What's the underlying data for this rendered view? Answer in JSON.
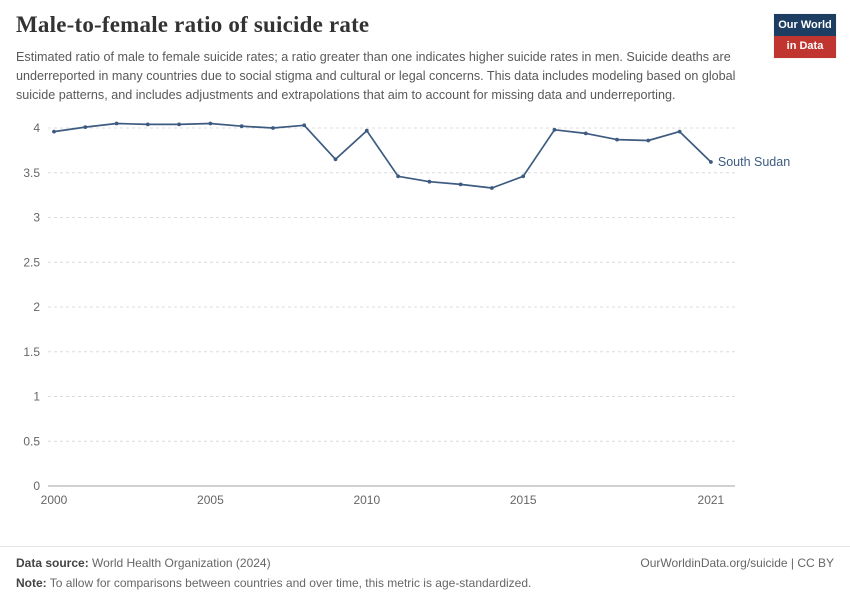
{
  "header": {
    "title": "Male-to-female ratio of suicide rate",
    "subtitle": "Estimated ratio of male to female suicide rates; a ratio greater than one indicates higher suicide rates in men. Suicide deaths are underreported in many countries due to social stigma and cultural or legal concerns. This data includes modeling based on global suicide patterns, and includes adjustments and extrapolations that aim to account for missing data and underreporting.",
    "logo": {
      "line1": "Our World",
      "line2": "in Data"
    }
  },
  "chart_data": {
    "type": "line",
    "title": "Male-to-female ratio of suicide rate",
    "x": [
      2000,
      2001,
      2002,
      2003,
      2004,
      2005,
      2006,
      2007,
      2008,
      2009,
      2010,
      2011,
      2012,
      2013,
      2014,
      2015,
      2016,
      2017,
      2018,
      2019,
      2020,
      2021
    ],
    "series": [
      {
        "name": "South Sudan",
        "color": "#3d5a80",
        "values": [
          3.96,
          4.01,
          4.05,
          4.04,
          4.04,
          4.05,
          4.02,
          4.0,
          4.03,
          3.65,
          3.97,
          3.46,
          3.4,
          3.37,
          3.33,
          3.46,
          3.98,
          3.94,
          3.87,
          3.86,
          3.96,
          3.62
        ]
      }
    ],
    "x_ticks": [
      2000,
      2005,
      2010,
      2015,
      2021
    ],
    "y_ticks": [
      0,
      0.5,
      1,
      1.5,
      2,
      2.5,
      3,
      3.5,
      4
    ],
    "xlim": [
      2000,
      2021
    ],
    "ylim": [
      0,
      4.2
    ],
    "grid": "horizontal-dashed",
    "legend": "end-of-line-label",
    "end_label": "South Sudan",
    "xlabel": "",
    "ylabel": ""
  },
  "footer": {
    "data_source_label": "Data source:",
    "data_source_value": "World Health Organization (2024)",
    "credit": "OurWorldinData.org/suicide | CC BY",
    "note_label": "Note:",
    "note_value": "To allow for comparisons between countries and over time, this metric is age-standardized."
  },
  "colors": {
    "line": "#3d5a80",
    "logo_navy": "#1d3d63",
    "logo_red": "#c0352f",
    "grid": "#dcdcdc",
    "axis": "#a3a3a3",
    "tick_text": "#666666"
  }
}
